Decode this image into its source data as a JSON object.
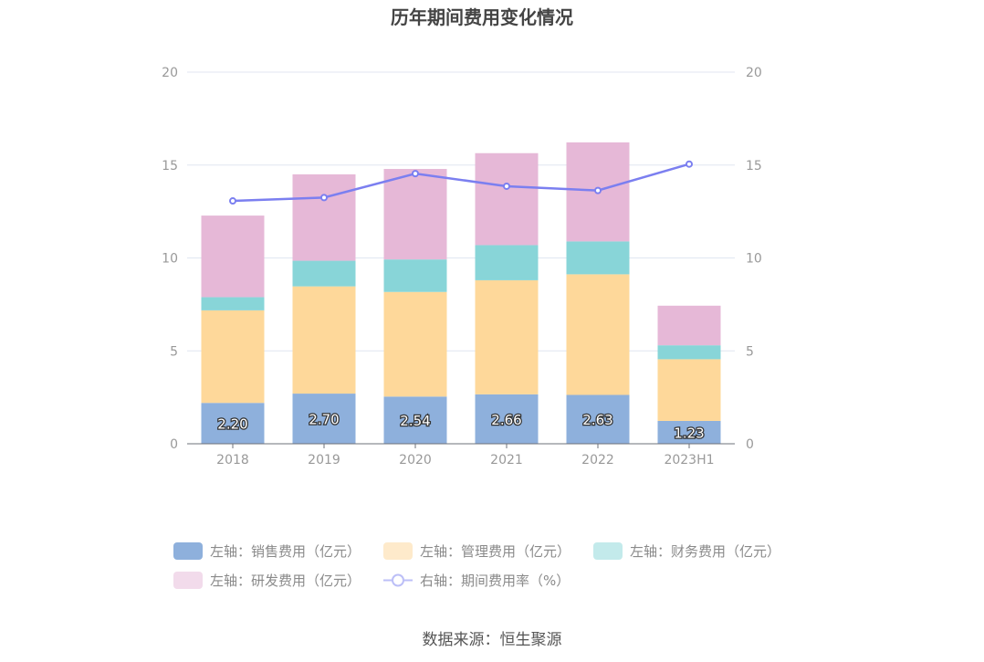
{
  "chart_data": {
    "type": "bar",
    "title": "历年期间费用变化情况",
    "categories": [
      "2018",
      "2019",
      "2020",
      "2021",
      "2022",
      "2023H1"
    ],
    "left_axis": {
      "ylim": [
        0,
        20
      ],
      "ticks": [
        "0",
        "5",
        "10",
        "15",
        "20"
      ]
    },
    "right_axis": {
      "ylim": [
        0,
        20
      ],
      "ticks": [
        "0",
        "5",
        "10",
        "15",
        "20"
      ]
    },
    "series": [
      {
        "name": "左轴：销售费用（亿元）",
        "type": "bar",
        "stack": true,
        "color": "#8eb0dc",
        "legend_color": "#8eb0dc",
        "values": [
          2.2,
          2.7,
          2.54,
          2.66,
          2.63,
          1.23
        ],
        "labels": [
          "2.20",
          "2.70",
          "2.54",
          "2.66",
          "2.63",
          "1.23"
        ]
      },
      {
        "name": "左轴：管理费用（亿元）",
        "type": "bar",
        "stack": true,
        "color": "#fed89a",
        "legend_color": "#feeacb",
        "values": [
          4.98,
          5.77,
          5.63,
          6.14,
          6.49,
          3.32
        ]
      },
      {
        "name": "左轴：财务费用（亿元）",
        "type": "bar",
        "stack": true,
        "color": "#88d5d8",
        "legend_color": "#c3eaeb",
        "values": [
          0.71,
          1.38,
          1.75,
          1.89,
          1.77,
          0.75
        ]
      },
      {
        "name": "左轴：研发费用（亿元）",
        "type": "bar",
        "stack": true,
        "color": "#e6b8d7",
        "legend_color": "#f2dbeb",
        "values": [
          4.39,
          4.65,
          4.87,
          4.95,
          5.33,
          2.13
        ]
      },
      {
        "name": "右轴：期间费用率（%）",
        "type": "line",
        "axis": "right",
        "color": "#7b7ff0",
        "legend_color": "#bcbff7",
        "values": [
          13.07,
          13.25,
          14.54,
          13.86,
          13.63,
          15.05
        ]
      }
    ],
    "legend_position": "bottom",
    "grid": true
  },
  "source": "数据来源：恒生聚源"
}
